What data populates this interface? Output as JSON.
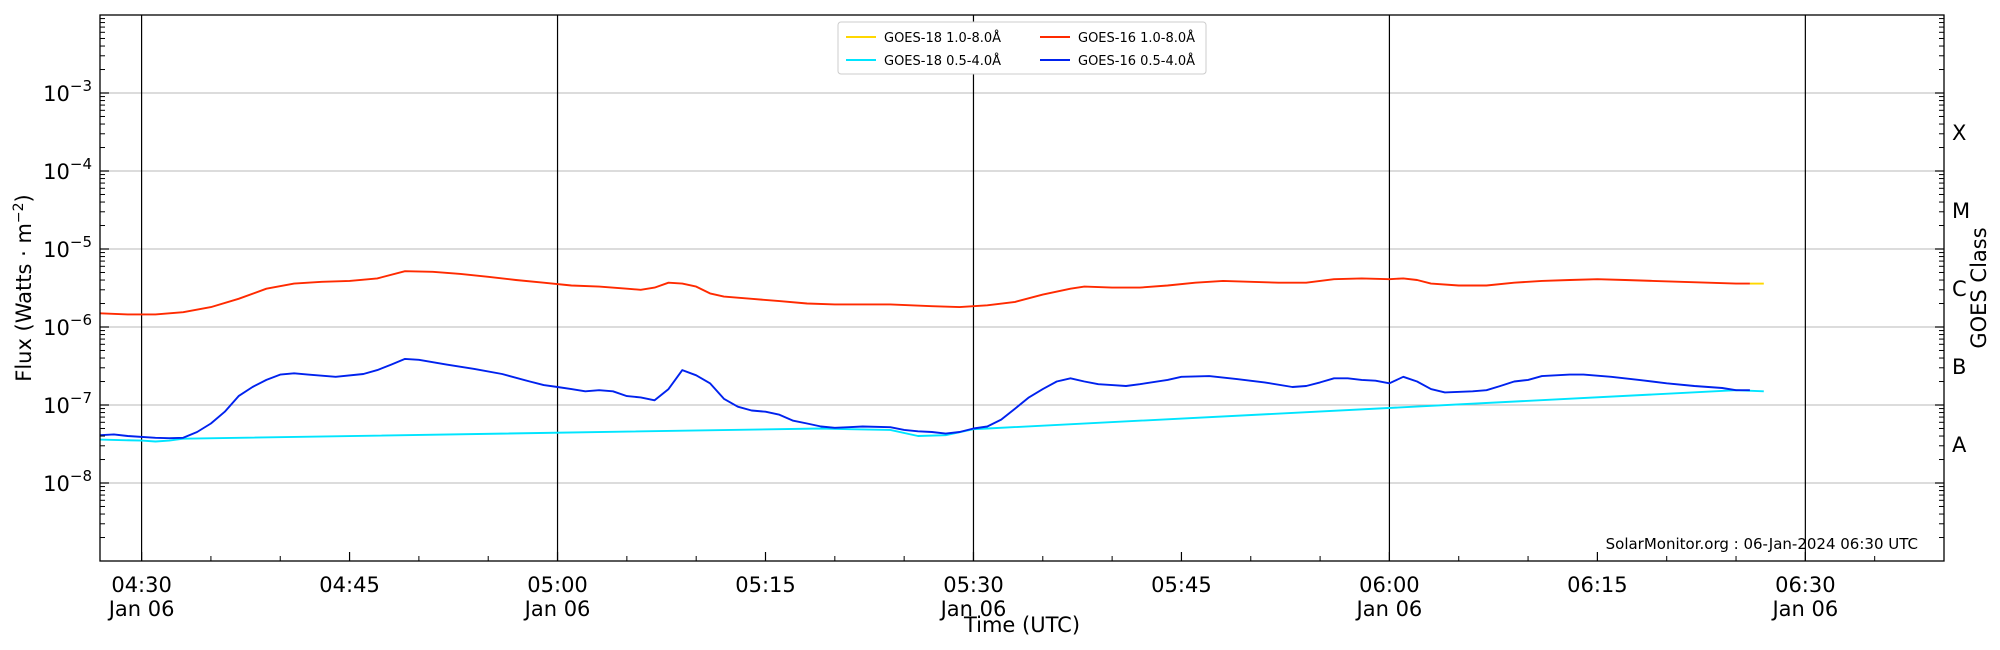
{
  "chart_data": {
    "type": "line",
    "xlabel": "Time (UTC)",
    "ylabel": "Flux (Watts · m",
    "ylabel_exponent": "−2",
    "ylabel_close": ")",
    "right_label": "GOES Class",
    "yscale": "log",
    "ylim": [
      1e-09,
      0.01
    ],
    "y_ticks": [
      {
        "value": 1e-08,
        "base": "10",
        "exp": "−8"
      },
      {
        "value": 1e-07,
        "base": "10",
        "exp": "−7"
      },
      {
        "value": 1e-06,
        "base": "10",
        "exp": "−6"
      },
      {
        "value": 1e-05,
        "base": "10",
        "exp": "−5"
      },
      {
        "value": 0.0001,
        "base": "10",
        "exp": "−4"
      },
      {
        "value": 0.001,
        "base": "10",
        "exp": "−3"
      }
    ],
    "class_labels": [
      {
        "label": "A",
        "value": 3.16e-08
      },
      {
        "label": "B",
        "value": 3.16e-07
      },
      {
        "label": "C",
        "value": 3.16e-06
      },
      {
        "label": "M",
        "value": 3.16e-05
      },
      {
        "label": "X",
        "value": 0.000316
      }
    ],
    "xlim": [
      "04:27",
      "06:40"
    ],
    "x_ticks": [
      {
        "time": "04:30",
        "date": "Jan 06"
      },
      {
        "time": "04:45",
        "date": ""
      },
      {
        "time": "05:00",
        "date": "Jan 06"
      },
      {
        "time": "05:15",
        "date": ""
      },
      {
        "time": "05:30",
        "date": "Jan 06"
      },
      {
        "time": "05:45",
        "date": ""
      },
      {
        "time": "06:00",
        "date": "Jan 06"
      },
      {
        "time": "06:15",
        "date": ""
      },
      {
        "time": "06:30",
        "date": "Jan 06"
      }
    ],
    "vertical_lines": [
      "04:30",
      "05:00",
      "05:30",
      "06:00",
      "06:30"
    ],
    "grid": "horizontal",
    "legend_position": "top-center",
    "annotation": "SolarMonitor.org : 06-Jan-2024 06:30 UTC",
    "series": [
      {
        "name": "GOES-18 1.0-8.0Å",
        "color": "#ffd700",
        "points": [
          [
            "06:26",
            3.6e-06
          ],
          [
            "06:27",
            3.6e-06
          ]
        ]
      },
      {
        "name": "GOES-18 0.5-4.0Å",
        "color": "#00e5ff",
        "points": [
          [
            "04:27",
            3.6e-08
          ],
          [
            "04:30",
            3.5e-08
          ],
          [
            "04:31",
            3.4e-08
          ],
          [
            "04:32",
            3.5e-08
          ],
          [
            "04:33",
            3.7e-08
          ],
          [
            "05:19",
            5e-08
          ],
          [
            "05:21",
            4.9e-08
          ],
          [
            "05:24",
            4.8e-08
          ],
          [
            "05:26",
            4e-08
          ],
          [
            "05:28",
            4.1e-08
          ],
          [
            "05:30",
            4.9e-08
          ],
          [
            "05:31",
            5e-08
          ],
          [
            "06:25",
            1.55e-07
          ],
          [
            "06:27",
            1.5e-07
          ]
        ]
      },
      {
        "name": "GOES-16 1.0-8.0Å",
        "color": "#ff2a00",
        "points": [
          [
            "04:27",
            1.5e-06
          ],
          [
            "04:29",
            1.45e-06
          ],
          [
            "04:31",
            1.45e-06
          ],
          [
            "04:33",
            1.55e-06
          ],
          [
            "04:35",
            1.8e-06
          ],
          [
            "04:37",
            2.3e-06
          ],
          [
            "04:39",
            3.1e-06
          ],
          [
            "04:41",
            3.6e-06
          ],
          [
            "04:43",
            3.8e-06
          ],
          [
            "04:45",
            3.9e-06
          ],
          [
            "04:47",
            4.2e-06
          ],
          [
            "04:49",
            5.2e-06
          ],
          [
            "04:51",
            5.1e-06
          ],
          [
            "04:53",
            4.8e-06
          ],
          [
            "04:55",
            4.4e-06
          ],
          [
            "04:57",
            4e-06
          ],
          [
            "04:59",
            3.7e-06
          ],
          [
            "05:01",
            3.4e-06
          ],
          [
            "05:03",
            3.3e-06
          ],
          [
            "05:05",
            3.1e-06
          ],
          [
            "05:06",
            3e-06
          ],
          [
            "05:07",
            3.2e-06
          ],
          [
            "05:08",
            3.7e-06
          ],
          [
            "05:09",
            3.6e-06
          ],
          [
            "05:10",
            3.3e-06
          ],
          [
            "05:11",
            2.7e-06
          ],
          [
            "05:12",
            2.45e-06
          ],
          [
            "05:14",
            2.3e-06
          ],
          [
            "05:16",
            2.15e-06
          ],
          [
            "05:18",
            2e-06
          ],
          [
            "05:20",
            1.95e-06
          ],
          [
            "05:24",
            1.95e-06
          ],
          [
            "05:27",
            1.85e-06
          ],
          [
            "05:29",
            1.8e-06
          ],
          [
            "05:31",
            1.9e-06
          ],
          [
            "05:33",
            2.1e-06
          ],
          [
            "05:35",
            2.6e-06
          ],
          [
            "05:37",
            3.1e-06
          ],
          [
            "05:38",
            3.3e-06
          ],
          [
            "05:40",
            3.2e-06
          ],
          [
            "05:42",
            3.2e-06
          ],
          [
            "05:44",
            3.4e-06
          ],
          [
            "05:46",
            3.7e-06
          ],
          [
            "05:48",
            3.9e-06
          ],
          [
            "05:50",
            3.8e-06
          ],
          [
            "05:52",
            3.7e-06
          ],
          [
            "05:54",
            3.7e-06
          ],
          [
            "05:56",
            4.1e-06
          ],
          [
            "05:58",
            4.2e-06
          ],
          [
            "06:00",
            4.1e-06
          ],
          [
            "06:01",
            4.2e-06
          ],
          [
            "06:02",
            4e-06
          ],
          [
            "06:03",
            3.6e-06
          ],
          [
            "06:05",
            3.4e-06
          ],
          [
            "06:07",
            3.4e-06
          ],
          [
            "06:09",
            3.7e-06
          ],
          [
            "06:11",
            3.9e-06
          ],
          [
            "06:13",
            4e-06
          ],
          [
            "06:15",
            4.1e-06
          ],
          [
            "06:17",
            4e-06
          ],
          [
            "06:19",
            3.9e-06
          ],
          [
            "06:21",
            3.8e-06
          ],
          [
            "06:23",
            3.7e-06
          ],
          [
            "06:25",
            3.6e-06
          ],
          [
            "06:26",
            3.6e-06
          ]
        ]
      },
      {
        "name": "GOES-16 0.5-4.0Å",
        "color": "#0022ee",
        "points": [
          [
            "04:27",
            4.1e-08
          ],
          [
            "04:28",
            4.2e-08
          ],
          [
            "04:29",
            4e-08
          ],
          [
            "04:31",
            3.8e-08
          ],
          [
            "04:32",
            3.75e-08
          ],
          [
            "04:33",
            3.8e-08
          ],
          [
            "04:34",
            4.5e-08
          ],
          [
            "04:35",
            5.8e-08
          ],
          [
            "04:36",
            8.2e-08
          ],
          [
            "04:37",
            1.3e-07
          ],
          [
            "04:38",
            1.7e-07
          ],
          [
            "04:39",
            2.1e-07
          ],
          [
            "04:40",
            2.45e-07
          ],
          [
            "04:41",
            2.55e-07
          ],
          [
            "04:42",
            2.45e-07
          ],
          [
            "04:44",
            2.3e-07
          ],
          [
            "04:46",
            2.5e-07
          ],
          [
            "04:47",
            2.8e-07
          ],
          [
            "04:48",
            3.3e-07
          ],
          [
            "04:49",
            3.9e-07
          ],
          [
            "04:50",
            3.8e-07
          ],
          [
            "04:52",
            3.3e-07
          ],
          [
            "04:54",
            2.9e-07
          ],
          [
            "04:56",
            2.5e-07
          ],
          [
            "04:58",
            2e-07
          ],
          [
            "04:59",
            1.8e-07
          ],
          [
            "05:00",
            1.7e-07
          ],
          [
            "05:01",
            1.6e-07
          ],
          [
            "05:02",
            1.5e-07
          ],
          [
            "05:03",
            1.55e-07
          ],
          [
            "05:04",
            1.5e-07
          ],
          [
            "05:05",
            1.3e-07
          ],
          [
            "05:06",
            1.25e-07
          ],
          [
            "05:07",
            1.15e-07
          ],
          [
            "05:08",
            1.6e-07
          ],
          [
            "05:09",
            2.8e-07
          ],
          [
            "05:10",
            2.4e-07
          ],
          [
            "05:11",
            1.9e-07
          ],
          [
            "05:12",
            1.2e-07
          ],
          [
            "05:13",
            9.5e-08
          ],
          [
            "05:14",
            8.5e-08
          ],
          [
            "05:15",
            8.2e-08
          ],
          [
            "05:16",
            7.5e-08
          ],
          [
            "05:17",
            6.3e-08
          ],
          [
            "05:18",
            5.8e-08
          ],
          [
            "05:19",
            5.3e-08
          ],
          [
            "05:20",
            5.1e-08
          ],
          [
            "05:21",
            5.2e-08
          ],
          [
            "05:22",
            5.3e-08
          ],
          [
            "05:24",
            5.2e-08
          ],
          [
            "05:25",
            4.8e-08
          ],
          [
            "05:26",
            4.6e-08
          ],
          [
            "05:27",
            4.5e-08
          ],
          [
            "05:28",
            4.3e-08
          ],
          [
            "05:29",
            4.5e-08
          ],
          [
            "05:30",
            5e-08
          ],
          [
            "05:31",
            5.3e-08
          ],
          [
            "05:32",
            6.5e-08
          ],
          [
            "05:33",
            9e-08
          ],
          [
            "05:34",
            1.25e-07
          ],
          [
            "05:35",
            1.6e-07
          ],
          [
            "05:36",
            2e-07
          ],
          [
            "05:37",
            2.2e-07
          ],
          [
            "05:38",
            2e-07
          ],
          [
            "05:39",
            1.85e-07
          ],
          [
            "05:40",
            1.8e-07
          ],
          [
            "05:41",
            1.75e-07
          ],
          [
            "05:42",
            1.85e-07
          ],
          [
            "05:44",
            2.1e-07
          ],
          [
            "05:45",
            2.3e-07
          ],
          [
            "05:47",
            2.35e-07
          ],
          [
            "05:49",
            2.15e-07
          ],
          [
            "05:51",
            1.95e-07
          ],
          [
            "05:53",
            1.7e-07
          ],
          [
            "05:54",
            1.75e-07
          ],
          [
            "05:55",
            1.95e-07
          ],
          [
            "05:56",
            2.2e-07
          ],
          [
            "05:57",
            2.2e-07
          ],
          [
            "05:58",
            2.1e-07
          ],
          [
            "05:59",
            2.05e-07
          ],
          [
            "06:00",
            1.9e-07
          ],
          [
            "06:01",
            2.3e-07
          ],
          [
            "06:02",
            2e-07
          ],
          [
            "06:03",
            1.6e-07
          ],
          [
            "06:04",
            1.45e-07
          ],
          [
            "06:06",
            1.5e-07
          ],
          [
            "06:07",
            1.55e-07
          ],
          [
            "06:08",
            1.75e-07
          ],
          [
            "06:09",
            2e-07
          ],
          [
            "06:10",
            2.1e-07
          ],
          [
            "06:11",
            2.35e-07
          ],
          [
            "06:13",
            2.45e-07
          ],
          [
            "06:14",
            2.45e-07
          ],
          [
            "06:16",
            2.3e-07
          ],
          [
            "06:18",
            2.1e-07
          ],
          [
            "06:20",
            1.9e-07
          ],
          [
            "06:22",
            1.75e-07
          ],
          [
            "06:24",
            1.65e-07
          ],
          [
            "06:25",
            1.55e-07
          ],
          [
            "06:26",
            1.55e-07
          ]
        ]
      }
    ],
    "legend_order": [
      0,
      1,
      2,
      3
    ]
  }
}
